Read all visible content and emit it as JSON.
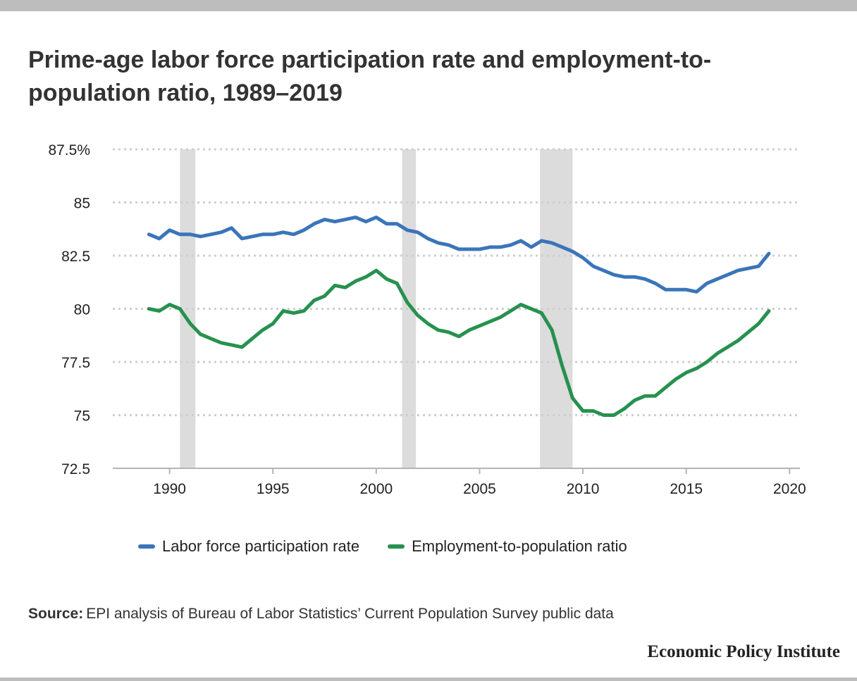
{
  "title": "Prime-age labor force participation rate and employment-to-population ratio, 1989–2019",
  "source_label": "Source:",
  "source_text": "EPI analysis of Bureau of Labor Statistics’ Current Population Survey public data",
  "brand": "Economic Policy Institute",
  "colors": {
    "lfpr": "#3b75b9",
    "epop": "#27914f",
    "recession": "#dcdcdc",
    "grid": "#cfcfcf",
    "axis": "#b5b5b5"
  },
  "chart_data": {
    "type": "line",
    "title": "Prime-age labor force participation rate and employment-to-population ratio, 1989–2019",
    "xlabel": "",
    "ylabel": "",
    "xlim": [
      1987.25,
      2020.5
    ],
    "ylim": [
      72.5,
      87.5
    ],
    "x_ticks": [
      1990,
      1995,
      2000,
      2005,
      2010,
      2015,
      2020
    ],
    "x_tick_labels": [
      "1990",
      "1995",
      "2000",
      "2005",
      "2010",
      "2015",
      "2020"
    ],
    "y_ticks": [
      72.5,
      75,
      77.5,
      80,
      82.5,
      85,
      87.5
    ],
    "y_tick_labels": [
      "72.5",
      "75",
      "77.5",
      "80",
      "82.5",
      "85",
      "87.5%"
    ],
    "grid": "horizontal dotted",
    "legend_position": "bottom",
    "recessions": [
      {
        "start": 1990.5,
        "end": 1991.25
      },
      {
        "start": 2001.25,
        "end": 2001.92
      },
      {
        "start": 2007.92,
        "end": 2009.5
      }
    ],
    "series": [
      {
        "name": "Labor force participation rate",
        "color": "#3b75b9",
        "x": [
          1989.0,
          1989.5,
          1990.0,
          1990.5,
          1991.0,
          1991.5,
          1992.0,
          1992.5,
          1993.0,
          1993.5,
          1994.0,
          1994.5,
          1995.0,
          1995.5,
          1996.0,
          1996.5,
          1997.0,
          1997.5,
          1998.0,
          1998.5,
          1999.0,
          1999.5,
          2000.0,
          2000.5,
          2001.0,
          2001.5,
          2002.0,
          2002.5,
          2003.0,
          2003.5,
          2004.0,
          2004.5,
          2005.0,
          2005.5,
          2006.0,
          2006.5,
          2007.0,
          2007.5,
          2008.0,
          2008.5,
          2009.0,
          2009.5,
          2010.0,
          2010.5,
          2011.0,
          2011.5,
          2012.0,
          2012.5,
          2013.0,
          2013.5,
          2014.0,
          2014.5,
          2015.0,
          2015.5,
          2016.0,
          2016.5,
          2017.0,
          2017.5,
          2018.0,
          2018.5,
          2019.0
        ],
        "values": [
          83.5,
          83.3,
          83.7,
          83.5,
          83.5,
          83.4,
          83.5,
          83.6,
          83.8,
          83.3,
          83.4,
          83.5,
          83.5,
          83.6,
          83.5,
          83.7,
          84.0,
          84.2,
          84.1,
          84.2,
          84.3,
          84.1,
          84.3,
          84.0,
          84.0,
          83.7,
          83.6,
          83.3,
          83.1,
          83.0,
          82.8,
          82.8,
          82.8,
          82.9,
          82.9,
          83.0,
          83.2,
          82.9,
          83.2,
          83.1,
          82.9,
          82.7,
          82.4,
          82.0,
          81.8,
          81.6,
          81.5,
          81.5,
          81.4,
          81.2,
          80.9,
          80.9,
          80.9,
          80.8,
          81.2,
          81.4,
          81.6,
          81.8,
          81.9,
          82.0,
          82.6
        ]
      },
      {
        "name": "Employment-to-population ratio",
        "color": "#27914f",
        "x": [
          1989.0,
          1989.5,
          1990.0,
          1990.5,
          1991.0,
          1991.5,
          1992.0,
          1992.5,
          1993.0,
          1993.5,
          1994.0,
          1994.5,
          1995.0,
          1995.5,
          1996.0,
          1996.5,
          1997.0,
          1997.5,
          1998.0,
          1998.5,
          1999.0,
          1999.5,
          2000.0,
          2000.5,
          2001.0,
          2001.5,
          2002.0,
          2002.5,
          2003.0,
          2003.5,
          2004.0,
          2004.5,
          2005.0,
          2005.5,
          2006.0,
          2006.5,
          2007.0,
          2007.5,
          2008.0,
          2008.5,
          2009.0,
          2009.5,
          2010.0,
          2010.5,
          2011.0,
          2011.5,
          2012.0,
          2012.5,
          2013.0,
          2013.5,
          2014.0,
          2014.5,
          2015.0,
          2015.5,
          2016.0,
          2016.5,
          2017.0,
          2017.5,
          2018.0,
          2018.5,
          2019.0
        ],
        "values": [
          80.0,
          79.9,
          80.2,
          80.0,
          79.3,
          78.8,
          78.6,
          78.4,
          78.3,
          78.2,
          78.6,
          79.0,
          79.3,
          79.9,
          79.8,
          79.9,
          80.4,
          80.6,
          81.1,
          81.0,
          81.3,
          81.5,
          81.8,
          81.4,
          81.2,
          80.3,
          79.7,
          79.3,
          79.0,
          78.9,
          78.7,
          79.0,
          79.2,
          79.4,
          79.6,
          79.9,
          80.2,
          80.0,
          79.8,
          79.0,
          77.3,
          75.8,
          75.2,
          75.2,
          75.0,
          75.0,
          75.3,
          75.7,
          75.9,
          75.9,
          76.3,
          76.7,
          77.0,
          77.2,
          77.5,
          77.9,
          78.2,
          78.5,
          78.9,
          79.3,
          79.9
        ]
      }
    ]
  }
}
